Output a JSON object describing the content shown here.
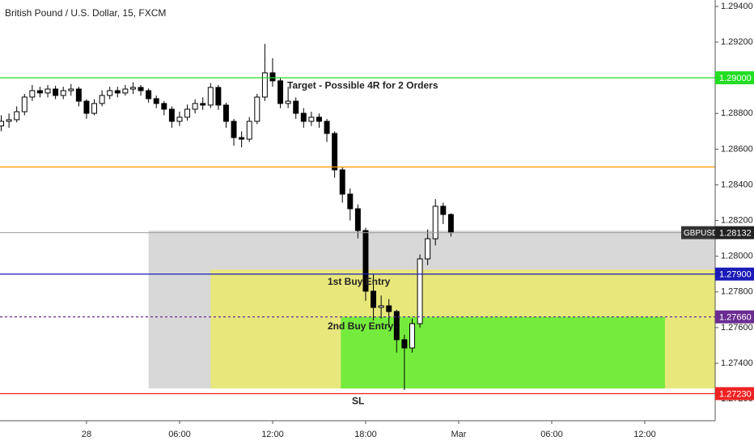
{
  "chart_data": {
    "type": "candlestick",
    "title": "British Pound / U.S. Dollar, 15, FXCM",
    "x": [
      -5.5,
      -5,
      -4.5,
      -4,
      -3.5,
      -3,
      -2.5,
      -2,
      -1.5,
      -1,
      -0.5,
      0,
      0.5,
      1,
      1.5,
      2,
      2.5,
      3,
      3.5,
      4,
      4.5,
      5,
      5.5,
      6,
      6.5,
      7,
      7.5,
      8,
      8.5,
      9,
      9.5,
      10,
      10.5,
      11,
      11.5,
      12,
      12.5,
      13,
      13.5,
      14,
      14.5,
      15,
      15.5,
      16,
      16.5,
      17,
      17.5,
      18,
      18.5,
      19,
      19.5,
      20,
      20.5,
      21,
      21.5,
      22,
      22.5,
      23,
      23.5
    ],
    "open": [
      1.2873,
      1.28756,
      1.28765,
      1.2881,
      1.28892,
      1.28928,
      1.28915,
      1.28937,
      1.28901,
      1.28928,
      1.28937,
      1.28869,
      1.28801,
      1.28856,
      1.28901,
      1.28928,
      1.28915,
      1.28937,
      1.28946,
      1.28928,
      1.28883,
      1.28856,
      1.28824,
      1.28756,
      1.28779,
      1.28824,
      1.28856,
      1.28847,
      1.28946,
      1.28847,
      1.28756,
      1.28665,
      1.28656,
      1.28756,
      1.28892,
      1.29028,
      1.28983,
      1.28856,
      1.28869,
      1.28801,
      1.28756,
      1.28779,
      1.28756,
      1.28688,
      1.28484,
      1.28348,
      1.28266,
      1.28144,
      1.27804,
      1.27713,
      1.27722,
      1.2769,
      1.27532,
      1.27486,
      1.27622,
      1.27985,
      1.28098,
      1.2828,
      1.28234
    ],
    "high": [
      1.2879,
      1.288,
      1.2884,
      1.2891,
      1.2896,
      1.2895,
      1.2896,
      1.28955,
      1.2895,
      1.28965,
      1.2895,
      1.2888,
      1.2888,
      1.2893,
      1.2895,
      1.2895,
      1.2896,
      1.28975,
      1.2896,
      1.2894,
      1.289,
      1.2887,
      1.2884,
      1.2881,
      1.2885,
      1.2888,
      1.2889,
      1.2897,
      1.2896,
      1.2886,
      1.2877,
      1.287,
      1.2878,
      1.2891,
      1.2919,
      1.2911,
      1.29,
      1.2895,
      1.2889,
      1.2883,
      1.2881,
      1.288,
      1.2877,
      1.287,
      1.285,
      1.2838,
      1.2829,
      1.2816,
      1.279,
      1.2778,
      1.2776,
      1.277,
      1.2756,
      1.2765,
      1.2801,
      1.2815,
      1.2832,
      1.283,
      1.2824
    ],
    "low": [
      1.287,
      1.2872,
      1.2875,
      1.2879,
      1.2887,
      1.2889,
      1.2889,
      1.2888,
      1.2888,
      1.289,
      1.2884,
      1.2877,
      1.2879,
      1.2884,
      1.2888,
      1.2889,
      1.289,
      1.2891,
      1.289,
      1.2886,
      1.2883,
      1.2879,
      1.2872,
      1.2873,
      1.2876,
      1.288,
      1.2882,
      1.2883,
      1.2882,
      1.2872,
      1.2862,
      1.2861,
      1.2864,
      1.2874,
      1.2887,
      1.2895,
      1.2883,
      1.2883,
      1.2877,
      1.2872,
      1.2873,
      1.2872,
      1.2864,
      1.2844,
      1.283,
      1.282,
      1.281,
      1.2775,
      1.2764,
      1.2765,
      1.276,
      1.2746,
      1.2725,
      1.2746,
      1.276,
      1.2795,
      1.2806,
      1.2818,
      1.2811
    ],
    "close": [
      1.28756,
      1.28765,
      1.2881,
      1.28892,
      1.28928,
      1.28915,
      1.28937,
      1.28901,
      1.28928,
      1.28937,
      1.28869,
      1.28801,
      1.28856,
      1.28901,
      1.28928,
      1.28915,
      1.28937,
      1.28946,
      1.28928,
      1.28883,
      1.28856,
      1.28824,
      1.28756,
      1.28779,
      1.28824,
      1.28856,
      1.28847,
      1.28946,
      1.28847,
      1.28756,
      1.28665,
      1.28656,
      1.28756,
      1.28892,
      1.29028,
      1.28983,
      1.28856,
      1.28869,
      1.28801,
      1.28756,
      1.28779,
      1.28756,
      1.28688,
      1.28484,
      1.28348,
      1.28266,
      1.28144,
      1.27804,
      1.27713,
      1.27722,
      1.2769,
      1.27532,
      1.27486,
      1.27622,
      1.27985,
      1.28098,
      1.2828,
      1.28234,
      1.28132
    ],
    "up_color": "#ffffff",
    "down_color": "#000000",
    "wick_color": "#000000",
    "xlim": [
      -5.58,
      40.54
    ],
    "xticks": [
      {
        "value": 0,
        "label": "28"
      },
      {
        "value": 6,
        "label": "06:00"
      },
      {
        "value": 12,
        "label": "12:00"
      },
      {
        "value": 18,
        "label": "18:00"
      },
      {
        "value": 24,
        "label": "Mar"
      },
      {
        "value": 30,
        "label": "06:00"
      },
      {
        "value": 36,
        "label": "12:00"
      }
    ],
    "ylim": [
      1.27078,
      1.29436
    ],
    "yticks": [
      {
        "value": 1.294,
        "label": "1.29400"
      },
      {
        "value": 1.292,
        "label": "1.29200"
      },
      {
        "value": 1.29,
        "label": "1.29000"
      },
      {
        "value": 1.288,
        "label": "1.28800"
      },
      {
        "value": 1.286,
        "label": "1.28600"
      },
      {
        "value": 1.284,
        "label": "1.28400"
      },
      {
        "value": 1.282,
        "label": "1.28200"
      },
      {
        "value": 1.28,
        "label": "1.28000"
      },
      {
        "value": 1.278,
        "label": "1.27800"
      },
      {
        "value": 1.276,
        "label": "1.27600"
      },
      {
        "value": 1.274,
        "label": "1.27400"
      },
      {
        "value": 1.272,
        "label": "1.27200"
      }
    ],
    "grid": false,
    "zones": [
      {
        "x": [
          4,
          40.54
        ],
        "y": [
          1.27259,
          1.28144
        ],
        "color": "#c8c8c8"
      },
      {
        "x": [
          8,
          40.54
        ],
        "y": [
          1.27259,
          1.27925
        ],
        "color": "#eeee55"
      },
      {
        "x": [
          16.4,
          37.3
        ],
        "y": [
          1.27259,
          1.2766
        ],
        "color": "#44ee22"
      }
    ],
    "hlines": [
      {
        "value": 1.29,
        "label": "1.29000",
        "color": "#22dd22",
        "text": "Target - Possible 4R for 2 Orders",
        "text_color": "#3a9e3a"
      },
      {
        "value": 1.285,
        "color": "#ff9800"
      },
      {
        "value": 1.279,
        "label": "1.27900",
        "color": "#1a1ab8",
        "text": "1st Buy Entry",
        "text_color": "#2c6fb5"
      },
      {
        "value": 1.2766,
        "label": "1.27660",
        "color": "#6a2c91",
        "dashed": true,
        "text": "2nd Buy Entry",
        "text_color": "#5a3fa0"
      },
      {
        "value": 1.2723,
        "label": "1.27230",
        "color": "#ee2222",
        "text": "SL",
        "text_color": "#ee2222"
      }
    ],
    "last_price": {
      "value": 1.28132,
      "label": "1.28132",
      "symbol": "GBPUSD",
      "color": "#9e9e9e"
    }
  }
}
